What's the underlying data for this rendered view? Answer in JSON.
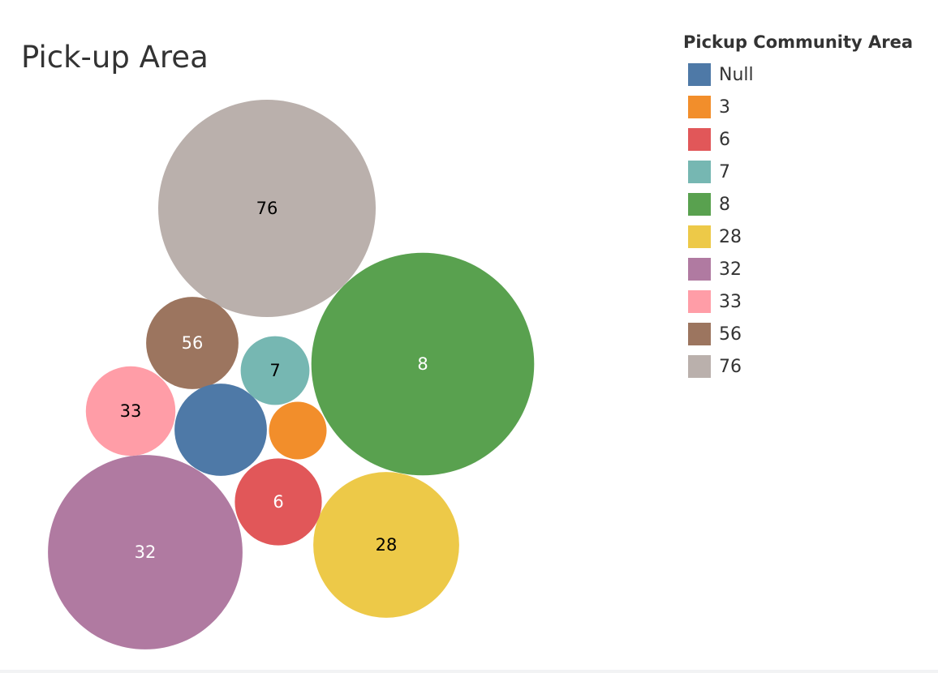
{
  "chart_data": {
    "type": "bubble",
    "title": "Pick-up Area",
    "legend": {
      "title": "Pickup Community Area",
      "placement": "top-right",
      "items": [
        {
          "label": "Null",
          "color": "#4e79a7"
        },
        {
          "label": "3",
          "color": "#f28e2b"
        },
        {
          "label": "6",
          "color": "#e15759"
        },
        {
          "label": "7",
          "color": "#76b7b2"
        },
        {
          "label": "8",
          "color": "#59a14f"
        },
        {
          "label": "28",
          "color": "#edc948"
        },
        {
          "label": "32",
          "color": "#b07aa1"
        },
        {
          "label": "33",
          "color": "#ff9da7"
        },
        {
          "label": "56",
          "color": "#9c755f"
        },
        {
          "label": "76",
          "color": "#bab0ac"
        }
      ]
    },
    "bubbles": [
      {
        "category": "76",
        "label": "76",
        "size": 100,
        "color": "#bab0ac",
        "label_color": "#000000"
      },
      {
        "category": "8",
        "label": "8",
        "size": 105,
        "color": "#59a14f",
        "label_color": "#ffffff"
      },
      {
        "category": "32",
        "label": "32",
        "size": 80,
        "color": "#b07aa1",
        "label_color": "#ffffff"
      },
      {
        "category": "28",
        "label": "28",
        "size": 45,
        "color": "#edc948",
        "label_color": "#000000"
      },
      {
        "category": "56",
        "label": "56",
        "size": 18,
        "color": "#9c755f",
        "label_color": "#ffffff"
      },
      {
        "category": "33",
        "label": "33",
        "size": 17,
        "color": "#ff9da7",
        "label_color": "#000000"
      },
      {
        "category": "Null",
        "label": "",
        "size": 18,
        "color": "#4e79a7",
        "label_color": "#ffffff"
      },
      {
        "category": "7",
        "label": "7",
        "size": 10,
        "color": "#76b7b2",
        "label_color": "#000000"
      },
      {
        "category": "6",
        "label": "6",
        "size": 16,
        "color": "#e15759",
        "label_color": "#ffffff"
      },
      {
        "category": "3",
        "label": "",
        "size": 7,
        "color": "#f28e2b",
        "label_color": "#ffffff"
      }
    ]
  }
}
